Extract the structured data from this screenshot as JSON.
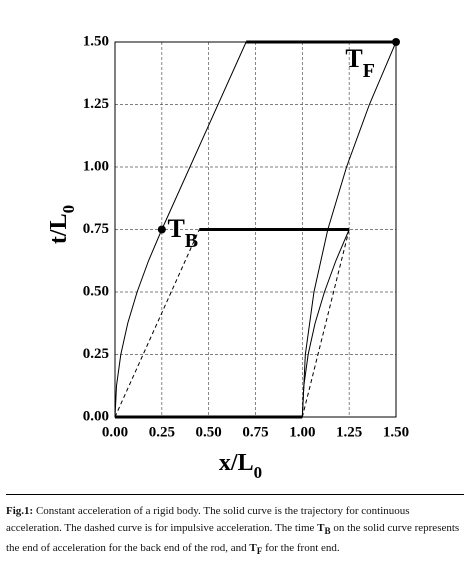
{
  "chart_data": {
    "type": "line",
    "y_label": "t/L",
    "y_label_sub": "0",
    "x_label": "x/L",
    "x_label_sub": "0",
    "xlim": [
      0,
      1.5
    ],
    "ylim": [
      0,
      1.5
    ],
    "xticks": [
      {
        "value": 0,
        "label": "0.00"
      },
      {
        "value": 0.25,
        "label": "0.25"
      },
      {
        "value": 0.5,
        "label": "0.50"
      },
      {
        "value": 0.75,
        "label": "0.75"
      },
      {
        "value": 1,
        "label": "1.00"
      },
      {
        "value": 1.25,
        "label": "1.25"
      },
      {
        "value": 1.5,
        "label": "1.50"
      }
    ],
    "yticks": [
      {
        "value": 0,
        "label": "0.00"
      },
      {
        "value": 0.25,
        "label": "0.25"
      },
      {
        "value": 0.5,
        "label": "0.50"
      },
      {
        "value": 0.75,
        "label": "0.75"
      },
      {
        "value": 1,
        "label": "1.00"
      },
      {
        "value": 1.25,
        "label": "1.25"
      },
      {
        "value": 1.5,
        "label": "1.50"
      }
    ],
    "grid": true,
    "series": [
      {
        "color": "#000",
        "style": "solid",
        "width": 1,
        "x": [
          0,
          0.008,
          0.031,
          0.068,
          0.118,
          0.179,
          0.25,
          0.7
        ],
        "values": [
          0,
          0.125,
          0.25,
          0.375,
          0.5,
          0.625,
          0.75,
          1.5
        ]
      },
      {
        "color": "#000",
        "style": "solid",
        "width": 1,
        "x": [
          1,
          1.016,
          1.062,
          1.136,
          1.236,
          1.358,
          1.5
        ],
        "values": [
          0,
          0.25,
          0.5,
          0.75,
          1,
          1.25,
          1.5
        ]
      },
      {
        "color": "#000",
        "style": "solid",
        "width": 1,
        "x": [
          1,
          1.008,
          1.031,
          1.068,
          1.118,
          1.179,
          1.25
        ],
        "values": [
          0,
          0.125,
          0.25,
          0.375,
          0.5,
          0.625,
          0.75
        ]
      },
      {
        "color": "#000",
        "style": "dashed",
        "width": 1,
        "x": [
          0,
          0.45
        ],
        "values": [
          0,
          0.75
        ]
      },
      {
        "color": "#000",
        "style": "dashed",
        "width": 1,
        "x": [
          1,
          1.25
        ],
        "values": [
          0,
          0.75
        ]
      },
      {
        "color": "#000",
        "style": "solid",
        "width": 3,
        "x": [
          0,
          1
        ],
        "values": [
          0,
          0
        ]
      },
      {
        "color": "#000",
        "style": "solid",
        "width": 3,
        "x": [
          0.45,
          1.25
        ],
        "values": [
          0.75,
          0.75
        ]
      },
      {
        "color": "#000",
        "style": "solid",
        "width": 3,
        "x": [
          0.7,
          1.5
        ],
        "values": [
          1.5,
          1.5
        ]
      }
    ],
    "points": {
      "x": [
        0.25,
        1.5
      ],
      "values": [
        0.75,
        1.5
      ]
    },
    "annotations": [
      {
        "text": "T",
        "sub": "B",
        "x": 0.28,
        "y": 0.72
      },
      {
        "text": "T",
        "sub": "F",
        "x": 1.23,
        "y": 1.4
      }
    ]
  },
  "caption": {
    "label": "Fig.1:",
    "text1": " Constant acceleration of a rigid body. The solid curve is the trajectory for continuous acceleration. The dashed curve is for impulsive acceleration. The time ",
    "tb": "T",
    "tb_sub": "B",
    "text2": " on the solid curve represents the end of acceleration for the back end of the rod, and ",
    "tf": "T",
    "tf_sub": "F",
    "text3": " for the front end."
  }
}
